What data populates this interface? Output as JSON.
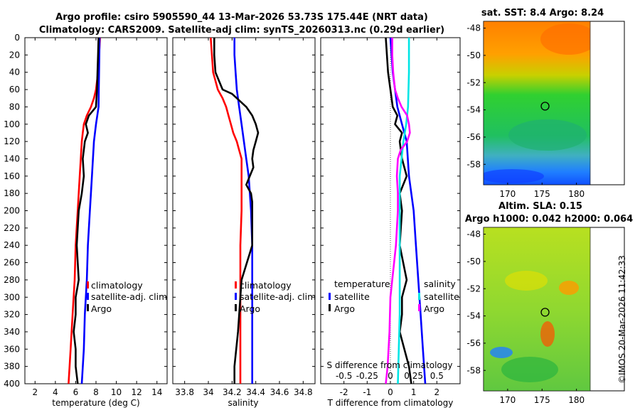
{
  "header": {
    "title_line1": "Argo profile: csiro 5905590_44 13-Mar-2026 53.73S 175.44E (NRT data)",
    "title_line2": "Climatology: CARS2009. Satellite-adj clim: synTS_20260313.nc (0.29d earlier)"
  },
  "stamp": "©IMOS 20-Mar-2026 11:42:33",
  "colors": {
    "climatology": "#ff0000",
    "satellite": "#0000ff",
    "argo": "#000000",
    "salinity_diff": "#ff00ff",
    "salinity_sat": "#00e5e5"
  },
  "depth_ticks": [
    "0",
    "20",
    "40",
    "60",
    "80",
    "100",
    "120",
    "140",
    "160",
    "180",
    "200",
    "220",
    "240",
    "260",
    "280",
    "300",
    "320",
    "340",
    "360",
    "380",
    "400"
  ],
  "chart_data": [
    {
      "type": "line",
      "xlabel": "temperature (deg C)",
      "xticks": [
        "2",
        "4",
        "6",
        "8",
        "10",
        "12",
        "14"
      ],
      "xlim": [
        1,
        15
      ],
      "ylim": [
        0,
        400
      ],
      "legend": {
        "placement": "bottom-right",
        "labels": [
          "climatology",
          "satellite-adj. clim",
          "Argo"
        ]
      },
      "series": [
        {
          "name": "climatology",
          "depth": [
            0,
            20,
            40,
            60,
            70,
            80,
            90,
            100,
            110,
            120,
            140,
            160,
            200,
            240,
            280,
            320,
            360,
            400
          ],
          "values": [
            8.4,
            8.3,
            8.2,
            8.0,
            7.8,
            7.5,
            7.1,
            6.8,
            6.7,
            6.6,
            6.5,
            6.4,
            6.2,
            6.0,
            5.9,
            5.7,
            5.5,
            5.3
          ]
        },
        {
          "name": "satellite-adj. clim",
          "depth": [
            0,
            20,
            40,
            60,
            80,
            100,
            120,
            160,
            200,
            240,
            280,
            320,
            360,
            400
          ],
          "values": [
            8.35,
            8.33,
            8.3,
            8.27,
            8.25,
            8.0,
            7.8,
            7.6,
            7.4,
            7.2,
            7.1,
            6.9,
            6.8,
            6.6
          ]
        },
        {
          "name": "Argo",
          "depth": [
            0,
            20,
            40,
            60,
            80,
            90,
            100,
            110,
            120,
            140,
            160,
            180,
            200,
            240,
            280,
            300,
            320,
            340,
            360,
            380,
            400
          ],
          "values": [
            8.25,
            8.2,
            8.15,
            8.1,
            8.0,
            7.3,
            7.0,
            7.2,
            6.9,
            6.7,
            6.8,
            6.6,
            6.3,
            6.1,
            6.3,
            6.0,
            6.0,
            5.8,
            6.0,
            6.0,
            6.2
          ]
        }
      ]
    },
    {
      "type": "line",
      "xlabel": "salinity",
      "xticks": [
        "33.8",
        "34",
        "34.2",
        "34.4",
        "34.6",
        "34.8"
      ],
      "xlim": [
        33.7,
        34.9
      ],
      "ylim": [
        0,
        400
      ],
      "legend": {
        "placement": "bottom-right",
        "labels": [
          "climatology",
          "satellite-adj. clim",
          "Argo"
        ]
      },
      "series": [
        {
          "name": "climatology",
          "depth": [
            0,
            20,
            40,
            60,
            70,
            80,
            90,
            100,
            110,
            120,
            130,
            140,
            160,
            180,
            200,
            240,
            280,
            320,
            360,
            400
          ],
          "values": [
            34.02,
            34.03,
            34.04,
            34.08,
            34.12,
            34.15,
            34.17,
            34.19,
            34.21,
            34.24,
            34.26,
            34.28,
            34.28,
            34.28,
            34.28,
            34.27,
            34.27,
            34.27,
            34.27,
            34.27
          ]
        },
        {
          "name": "satellite-adj. clim",
          "depth": [
            0,
            20,
            40,
            60,
            80,
            100,
            120,
            140,
            160,
            200,
            240,
            280,
            320,
            360,
            400
          ],
          "values": [
            34.22,
            34.22,
            34.23,
            34.24,
            34.26,
            34.28,
            34.3,
            34.32,
            34.34,
            34.36,
            34.37,
            34.37,
            34.37,
            34.37,
            34.37
          ]
        },
        {
          "name": "Argo",
          "depth": [
            0,
            20,
            40,
            60,
            65,
            70,
            80,
            90,
            100,
            110,
            120,
            130,
            140,
            150,
            160,
            170,
            180,
            190,
            200,
            240,
            280,
            300,
            340,
            380,
            400
          ],
          "values": [
            34.05,
            34.05,
            34.06,
            34.12,
            34.2,
            34.24,
            34.32,
            34.37,
            34.4,
            34.42,
            34.4,
            34.38,
            34.37,
            34.38,
            34.35,
            34.32,
            34.36,
            34.37,
            34.37,
            34.37,
            34.28,
            34.27,
            34.25,
            34.22,
            34.22
          ]
        }
      ]
    },
    {
      "type": "line",
      "xlabel": "T difference from climatology",
      "xticks": [
        "-2",
        "-1",
        "0",
        "1",
        "2"
      ],
      "xlim": [
        -3,
        3
      ],
      "ylim": [
        0,
        400
      ],
      "top_label": "S difference from climatology",
      "top_ticks": [
        "-0.5",
        "-0.25",
        "0",
        "0.25",
        "0.5"
      ],
      "top_xlim": [
        -0.75,
        0.75
      ],
      "legend_temperature": {
        "title": "temperature",
        "labels": [
          "satellite",
          "Argo"
        ]
      },
      "legend_salinity": {
        "title": "salinity",
        "labels": [
          "satellite",
          "Argo"
        ]
      },
      "series": [
        {
          "name": "temperature satellite",
          "depth": [
            0,
            40,
            80,
            100,
            120,
            160,
            200,
            240,
            280,
            320,
            360,
            400
          ],
          "values": [
            0.0,
            0.1,
            0.3,
            0.5,
            0.7,
            0.8,
            1.0,
            1.1,
            1.2,
            1.3,
            1.4,
            1.5
          ]
        },
        {
          "name": "temperature Argo",
          "depth": [
            0,
            40,
            60,
            80,
            90,
            100,
            110,
            120,
            140,
            160,
            180,
            200,
            240,
            280,
            300,
            320,
            340,
            360,
            380,
            400
          ],
          "values": [
            -0.2,
            -0.1,
            0.0,
            0.1,
            0.3,
            0.2,
            0.5,
            0.4,
            0.5,
            0.7,
            0.4,
            0.5,
            0.4,
            0.7,
            0.5,
            0.5,
            0.4,
            0.6,
            0.8,
            0.9
          ]
        },
        {
          "name": "salinity satellite",
          "depth": [
            0,
            40,
            80,
            100,
            120,
            140,
            160,
            200,
            240,
            280,
            320,
            360,
            400
          ],
          "values": [
            0.2,
            0.2,
            0.19,
            0.17,
            0.14,
            0.12,
            0.1,
            0.1,
            0.1,
            0.1,
            0.1,
            0.09,
            0.08
          ]
        },
        {
          "name": "salinity Argo",
          "depth": [
            0,
            20,
            40,
            60,
            70,
            80,
            90,
            100,
            110,
            120,
            130,
            140,
            160,
            180,
            200,
            240,
            280,
            300,
            340,
            380,
            400
          ],
          "values": [
            0.02,
            0.02,
            0.03,
            0.05,
            0.08,
            0.12,
            0.18,
            0.2,
            0.21,
            0.18,
            0.11,
            0.08,
            0.07,
            0.08,
            0.08,
            0.06,
            0.02,
            0.0,
            -0.01,
            -0.03,
            -0.05
          ]
        }
      ]
    },
    {
      "type": "heatmap",
      "title": "sat. SST: 8.4 Argo: 8.24",
      "xticks": [
        "170",
        "175",
        "180"
      ],
      "yticks": [
        "-48",
        "-50",
        "-52",
        "-54",
        "-56",
        "-58"
      ],
      "xlim": [
        166.5,
        182
      ],
      "ylim": [
        -59.5,
        -47.5
      ],
      "profile_marker": [
        175.44,
        -53.73
      ]
    },
    {
      "type": "heatmap",
      "title_line1": "Altim. SLA: 0.15",
      "title_line2": "Argo h1000: 0.042 h2000: 0.064",
      "xticks": [
        "170",
        "175",
        "180"
      ],
      "yticks": [
        "-48",
        "-50",
        "-52",
        "-54",
        "-56",
        "-58"
      ],
      "xlim": [
        166.5,
        182
      ],
      "ylim": [
        -59.5,
        -47.5
      ],
      "profile_marker": [
        175.44,
        -53.73
      ]
    }
  ]
}
